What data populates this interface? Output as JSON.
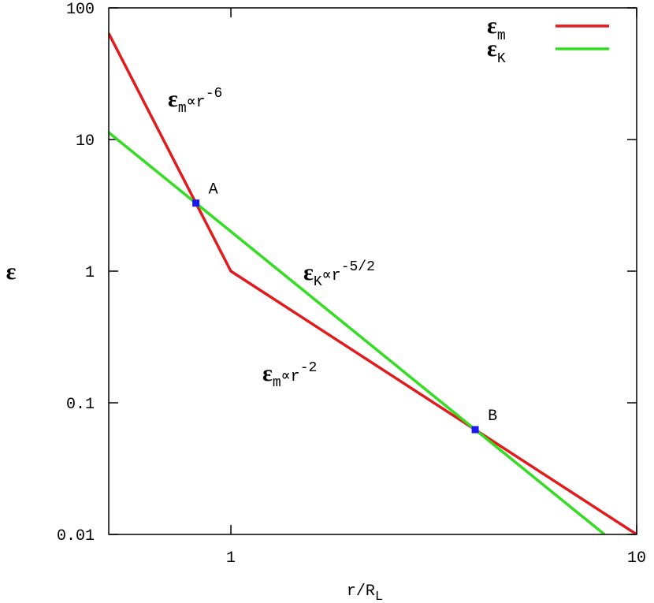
{
  "chart_data": {
    "type": "line",
    "x_label": {
      "text": "r/R",
      "sub": "L"
    },
    "y_label": "ε",
    "log_x": true,
    "log_y": true,
    "xlim": [
      0.5,
      10
    ],
    "ylim": [
      0.01,
      100
    ],
    "xticks": [
      1,
      10
    ],
    "yticks": [
      0.01,
      0.1,
      1,
      10,
      100
    ],
    "legend": "top-right",
    "series": [
      {
        "name": "ε",
        "subscript": "m",
        "color": "#e31a1c",
        "x": [
          0.5,
          1,
          10
        ],
        "values": [
          64,
          1,
          0.01
        ]
      },
      {
        "name": "ε",
        "subscript": "K",
        "color": "#33dd22",
        "x": [
          0.5,
          8.33
        ],
        "values": [
          11.31,
          0.01
        ]
      }
    ],
    "points": {
      "color": "#1a1aee",
      "labels": [
        "A",
        "B"
      ],
      "x": [
        0.82,
        4
      ],
      "values": [
        3.29,
        0.0625
      ]
    },
    "annotations": [
      {
        "base": "ε",
        "sub": "m",
        "mid": "∝r",
        "sup": "-6"
      },
      {
        "base": "ε",
        "sub": "K",
        "mid": "∝r",
        "sup": "-5/2"
      },
      {
        "base": "ε",
        "sub": "m",
        "mid": "∝r",
        "sup": "-2"
      }
    ]
  }
}
